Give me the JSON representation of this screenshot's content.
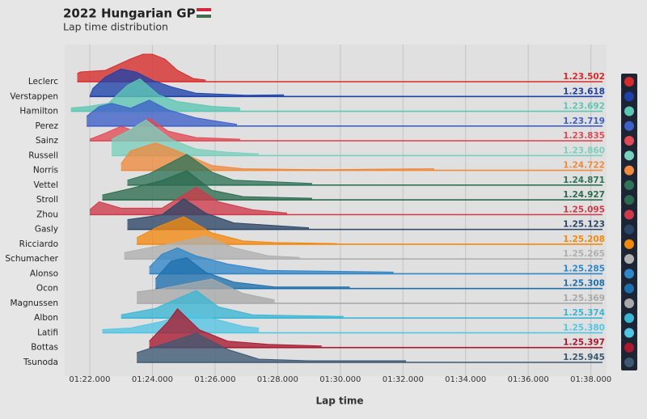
{
  "chart_data": {
    "type": "ridgeline",
    "title": "2022 Hungarian GP",
    "subtitle": "Lap time distribution",
    "x_label": "Lap time",
    "xlim": [
      81.2,
      98.5
    ],
    "xticks": [
      {
        "value": 82,
        "label": "01:22.000"
      },
      {
        "value": 84,
        "label": "01:24.000"
      },
      {
        "value": 86,
        "label": "01:26.000"
      },
      {
        "value": 88,
        "label": "01:28.000"
      },
      {
        "value": 90,
        "label": "01:30.000"
      },
      {
        "value": 92,
        "label": "01:32.000"
      },
      {
        "value": 94,
        "label": "01:34.000"
      },
      {
        "value": 96,
        "label": "01:36.000"
      },
      {
        "value": 98,
        "label": "01:38.000"
      }
    ],
    "grid": true,
    "series": [
      {
        "name": "Leclerc",
        "color": "#d72a2a",
        "median": 83.502,
        "median_label": "1.23.502",
        "x": [
          81.6,
          81.7,
          82.5,
          83.3,
          83.7,
          84.0,
          84.4,
          84.8,
          85.3,
          85.7
        ],
        "values": [
          0.25,
          0.3,
          0.35,
          0.7,
          0.85,
          0.85,
          0.7,
          0.35,
          0.1,
          0.05
        ]
      },
      {
        "name": "Verstappen",
        "color": "#1e41a8",
        "median": 83.618,
        "median_label": "1.23.618",
        "x": [
          82.0,
          82.1,
          82.5,
          83.0,
          83.5,
          84.0,
          84.6,
          85.4,
          87.0,
          88.2
        ],
        "values": [
          0,
          0.25,
          0.6,
          0.85,
          0.75,
          0.5,
          0.3,
          0.1,
          0.04,
          0.05
        ]
      },
      {
        "name": "Hamilton",
        "color": "#5cc7b3",
        "median": 83.692,
        "median_label": "1.23.692",
        "x": [
          81.4,
          82.0,
          82.6,
          83.2,
          83.6,
          84.2,
          84.8,
          85.9,
          86.8
        ],
        "values": [
          0.1,
          0.15,
          0.25,
          0.8,
          1.0,
          0.5,
          0.3,
          0.15,
          0.1
        ]
      },
      {
        "name": "Perez",
        "color": "#3f60c8",
        "median": 83.719,
        "median_label": "1.23.719",
        "x": [
          81.9,
          82.3,
          82.7,
          83.3,
          83.9,
          84.5,
          85.4,
          86.7
        ],
        "values": [
          0.3,
          0.6,
          0.7,
          0.55,
          0.8,
          0.5,
          0.25,
          0.05
        ]
      },
      {
        "name": "Sainz",
        "color": "#e04a55",
        "median": 83.835,
        "median_label": "1.23.835",
        "x": [
          82.0,
          82.4,
          83.0,
          83.3,
          83.9,
          84.5,
          85.4,
          86.8
        ],
        "values": [
          0.05,
          0.2,
          0.45,
          0.35,
          0.7,
          0.3,
          0.1,
          0.05
        ]
      },
      {
        "name": "Russell",
        "color": "#79d0bd",
        "median": 83.86,
        "median_label": "1.23.860",
        "x": [
          82.7,
          83.2,
          83.8,
          84.6,
          85.4,
          86.4,
          87.4
        ],
        "values": [
          0.5,
          0.75,
          1.1,
          0.5,
          0.2,
          0.1,
          0.05
        ]
      },
      {
        "name": "Norris",
        "color": "#f08a3e",
        "median": 84.722,
        "median_label": "1.24.722",
        "x": [
          83.0,
          83.3,
          84.1,
          84.8,
          85.9,
          86.9,
          89.5,
          91.5,
          93.0
        ],
        "values": [
          0.2,
          0.6,
          0.85,
          0.6,
          0.15,
          0.05,
          0.02,
          0.04,
          0.05
        ]
      },
      {
        "name": "Vettel",
        "color": "#2f7358",
        "median": 84.871,
        "median_label": "1.24.871",
        "x": [
          83.2,
          83.9,
          85.1,
          85.9,
          86.6,
          89.1
        ],
        "values": [
          0.15,
          0.35,
          0.95,
          0.4,
          0.15,
          0.05
        ]
      },
      {
        "name": "Stroll",
        "color": "#2b6b4f",
        "median": 84.927,
        "median_label": "1.24.927",
        "x": [
          82.4,
          83.3,
          84.3,
          85.1,
          85.9,
          86.9,
          89.1
        ],
        "values": [
          0.15,
          0.35,
          0.6,
          0.9,
          0.3,
          0.1,
          0.05
        ]
      },
      {
        "name": "Zhou",
        "color": "#cf3a4a",
        "median": 85.095,
        "median_label": "1.25.095",
        "x": [
          82.0,
          82.3,
          83.0,
          84.3,
          85.4,
          86.1,
          87.2,
          88.3
        ],
        "values": [
          0.15,
          0.4,
          0.2,
          0.2,
          0.85,
          0.4,
          0.15,
          0.05
        ]
      },
      {
        "name": "Gasly",
        "color": "#2b4566",
        "median": 85.123,
        "median_label": "1.25.123",
        "x": [
          83.2,
          84.3,
          85.0,
          85.7,
          86.6,
          89.0
        ],
        "values": [
          0.3,
          0.45,
          0.95,
          0.5,
          0.2,
          0.05
        ]
      },
      {
        "name": "Ricciardo",
        "color": "#f2890f",
        "median": 85.208,
        "median_label": "1.25.208",
        "x": [
          83.5,
          84.2,
          85.0,
          85.9,
          86.9,
          87.9,
          89.9
        ],
        "values": [
          0.2,
          0.55,
          0.85,
          0.35,
          0.1,
          0.05,
          0.02
        ]
      },
      {
        "name": "Schumacher",
        "color": "#b0b0b0",
        "median": 85.265,
        "median_label": "1.25.265",
        "x": [
          83.1,
          83.9,
          84.7,
          85.7,
          86.6,
          87.7,
          88.7
        ],
        "values": [
          0.2,
          0.35,
          0.5,
          0.7,
          0.35,
          0.1,
          0.05
        ]
      },
      {
        "name": "Alonso",
        "color": "#2f86c9",
        "median": 85.285,
        "median_label": "1.25.285",
        "x": [
          83.9,
          84.3,
          84.8,
          85.4,
          86.4,
          87.7,
          91.7
        ],
        "values": [
          0.2,
          0.6,
          0.8,
          0.55,
          0.3,
          0.1,
          0.05
        ]
      },
      {
        "name": "Ocon",
        "color": "#1d6fad",
        "median": 85.308,
        "median_label": "1.25.308",
        "x": [
          84.1,
          84.6,
          85.1,
          85.7,
          86.6,
          87.9,
          90.3
        ],
        "values": [
          0.3,
          0.85,
          0.95,
          0.5,
          0.2,
          0.05,
          0.05
        ]
      },
      {
        "name": "Magnussen",
        "color": "#a9a9a9",
        "median": 85.369,
        "median_label": "1.25.369",
        "x": [
          83.5,
          84.3,
          85.1,
          85.9,
          86.9,
          87.9
        ],
        "values": [
          0.35,
          0.45,
          0.6,
          0.75,
          0.3,
          0.1
        ]
      },
      {
        "name": "Albon",
        "color": "#3ab6d4",
        "median": 85.374,
        "median_label": "1.25.374",
        "x": [
          83.0,
          84.1,
          84.8,
          85.4,
          86.1,
          87.2,
          90.1
        ],
        "values": [
          0.1,
          0.3,
          0.6,
          0.85,
          0.35,
          0.1,
          0.05
        ]
      },
      {
        "name": "Latifi",
        "color": "#53c5e4",
        "median": 85.38,
        "median_label": "1.25.380",
        "x": [
          82.4,
          83.3,
          84.3,
          85.1,
          85.9,
          86.9,
          87.4
        ],
        "values": [
          0.1,
          0.15,
          0.35,
          0.6,
          0.45,
          0.2,
          0.15
        ]
      },
      {
        "name": "Bottas",
        "color": "#a8182e",
        "median": 85.397,
        "median_label": "1.25.397",
        "x": [
          83.9,
          84.5,
          84.8,
          85.5,
          86.4,
          87.7,
          89.4
        ],
        "values": [
          0.2,
          0.8,
          1.2,
          0.55,
          0.2,
          0.1,
          0.05
        ]
      },
      {
        "name": "Tsunoda",
        "color": "#3d5873",
        "median": 85.945,
        "median_label": "1.25.945",
        "x": [
          83.5,
          84.3,
          85.4,
          86.4,
          87.4,
          89.0,
          92.1
        ],
        "values": [
          0.3,
          0.55,
          0.9,
          0.4,
          0.1,
          0.05,
          0.05
        ]
      }
    ]
  }
}
